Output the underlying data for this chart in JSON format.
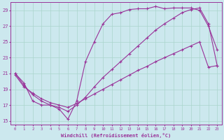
{
  "xlabel": "Windchill (Refroidissement éolien,°C)",
  "bg_color": "#cce8ee",
  "grid_color": "#aad4cc",
  "line_color": "#993399",
  "xlim": [
    -0.5,
    23.5
  ],
  "ylim": [
    14.5,
    30.0
  ],
  "xticks": [
    0,
    1,
    2,
    3,
    4,
    5,
    6,
    7,
    8,
    9,
    10,
    11,
    12,
    13,
    14,
    15,
    16,
    17,
    18,
    19,
    20,
    21,
    22,
    23
  ],
  "yticks": [
    15,
    17,
    19,
    21,
    23,
    25,
    27,
    29
  ],
  "line1_x": [
    0,
    1,
    2,
    3,
    4,
    5,
    6,
    7,
    8,
    9,
    10,
    11,
    12,
    13,
    14,
    15,
    16,
    17,
    18,
    19,
    20,
    21,
    22,
    23
  ],
  "line1_y": [
    21.0,
    19.8,
    17.5,
    17.0,
    17.0,
    16.5,
    15.2,
    17.5,
    22.5,
    25.0,
    27.3,
    28.5,
    28.7,
    29.1,
    29.2,
    29.2,
    29.5,
    29.2,
    29.3,
    29.3,
    29.3,
    29.0,
    27.0,
    24.0
  ],
  "line2_x": [
    0,
    1,
    2,
    3,
    4,
    5,
    6,
    7,
    8,
    9,
    10,
    11,
    12,
    13,
    14,
    15,
    16,
    17,
    18,
    19,
    20,
    21,
    22,
    23
  ],
  "line2_y": [
    20.8,
    19.3,
    18.5,
    17.8,
    17.3,
    17.0,
    16.7,
    17.2,
    17.8,
    18.4,
    19.0,
    19.6,
    20.2,
    20.8,
    21.4,
    21.9,
    22.5,
    23.0,
    23.5,
    24.0,
    24.5,
    25.0,
    21.8,
    22.0
  ],
  "line3_x": [
    0,
    1,
    2,
    3,
    4,
    5,
    6,
    7,
    8,
    9,
    10,
    11,
    12,
    13,
    14,
    15,
    16,
    17,
    18,
    19,
    20,
    21,
    22,
    23
  ],
  "line3_y": [
    21.0,
    19.5,
    18.3,
    17.5,
    17.0,
    16.7,
    16.2,
    17.0,
    18.0,
    19.3,
    20.5,
    21.5,
    22.5,
    23.5,
    24.5,
    25.5,
    26.5,
    27.3,
    28.0,
    28.7,
    29.1,
    29.3,
    27.3,
    22.0
  ]
}
